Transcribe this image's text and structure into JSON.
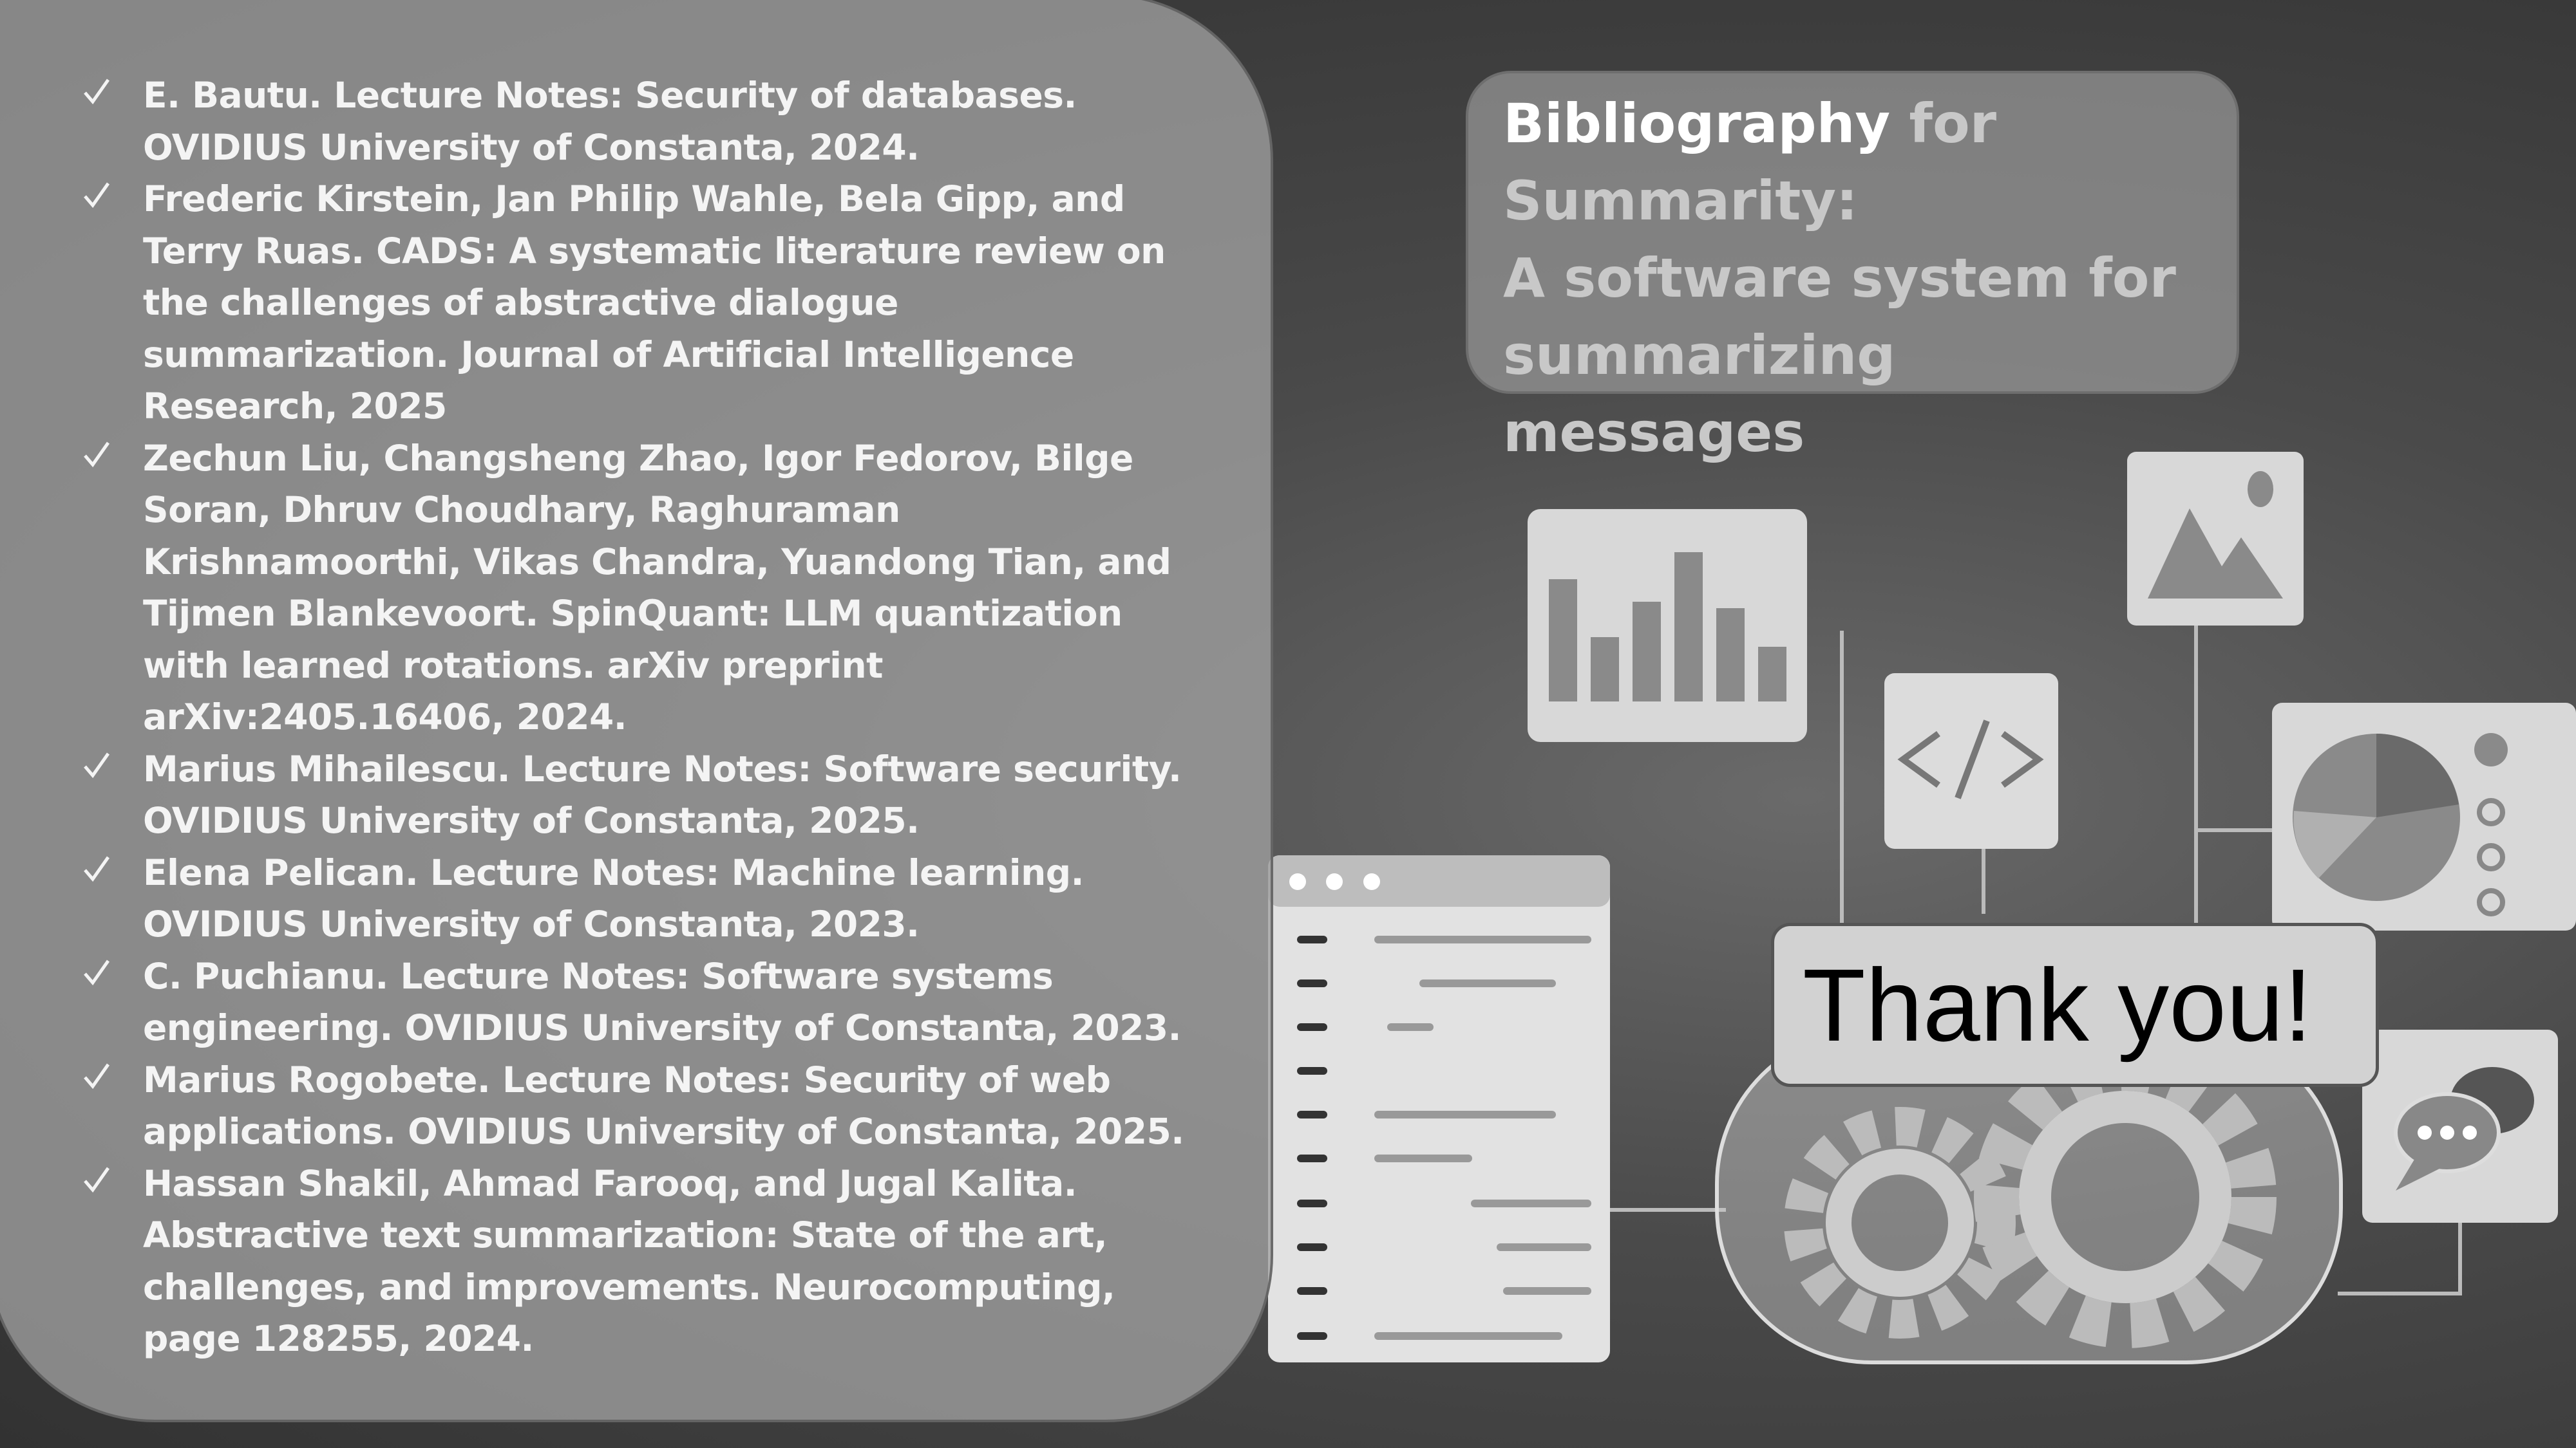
{
  "references": [
    "E. Bautu. Lecture Notes: Security of databases. OVIDIUS University of Constanta, 2024.",
    "Frederic Kirstein, Jan Philip Wahle, Bela Gipp, and Terry Ruas. CADS: A systematic literature review on the challenges of abstractive dialogue summarization. Journal of Artificial Intelligence Research, 2025",
    "Zechun Liu, Changsheng Zhao, Igor Fedorov, Bilge Soran, Dhruv Choudhary, Raghuraman Krishnamoorthi, Vikas Chandra, Yuandong Tian, and Tijmen Blankevoort. SpinQuant: LLM quantization with learned rotations. arXiv preprint arXiv:2405.16406, 2024.",
    "Marius Mihailescu. Lecture Notes: Software security. OVIDIUS University of Constanta, 2025.",
    "Elena Pelican. Lecture Notes: Machine learning. OVIDIUS University of Constanta, 2023.",
    "C. Puchianu. Lecture Notes: Software systems engineering. OVIDIUS University of Constanta, 2023.",
    "Marius Rogobete. Lecture Notes: Security of web applications. OVIDIUS University of Constanta, 2025.",
    "Hassan Shakil, Ahmad Farooq, and Jugal Kalita. Abstractive text summarization: State of the art, challenges, and improvements. Neurocomputing, page 128255, 2024."
  ],
  "title": {
    "highlight": "Bibliography",
    "rest": "for Summarity:",
    "subtitle": "A software system for summarizing messages"
  },
  "closing": "Thank you!"
}
